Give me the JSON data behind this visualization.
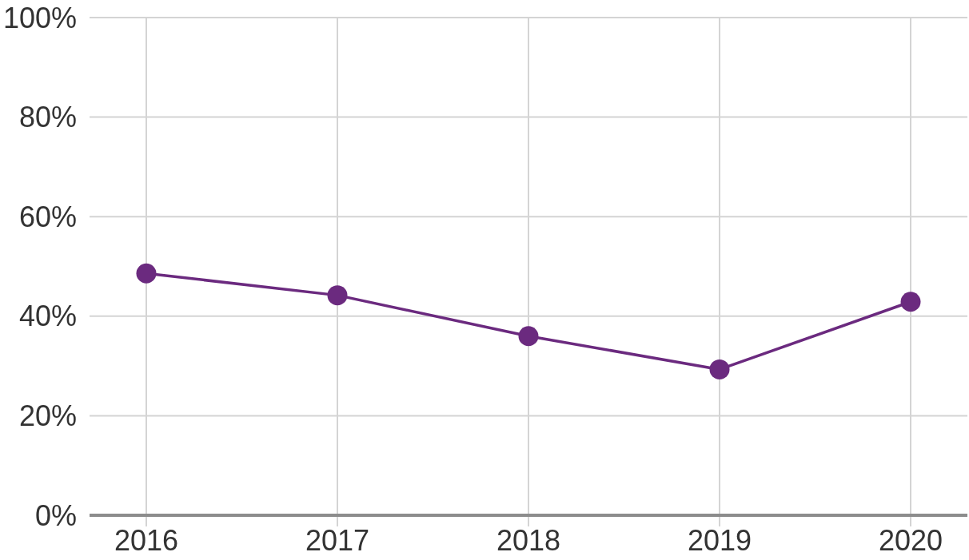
{
  "chart_data": {
    "type": "line",
    "categories": [
      "2016",
      "2017",
      "2018",
      "2019",
      "2020"
    ],
    "series": [
      {
        "color": "#6b2a7f",
        "values": [
          48.6,
          44.2,
          36,
          29.3,
          42.9
        ]
      }
    ],
    "ylim": [
      0,
      100
    ],
    "yticks": [
      {
        "value": 0,
        "label": "0%"
      },
      {
        "value": 20,
        "label": "20%"
      },
      {
        "value": 40,
        "label": "40%"
      },
      {
        "value": 60,
        "label": "60%"
      },
      {
        "value": 80,
        "label": "80%"
      },
      {
        "value": 100,
        "label": "100%"
      }
    ],
    "grid": true,
    "marker": "circle",
    "line_style": "solid"
  }
}
